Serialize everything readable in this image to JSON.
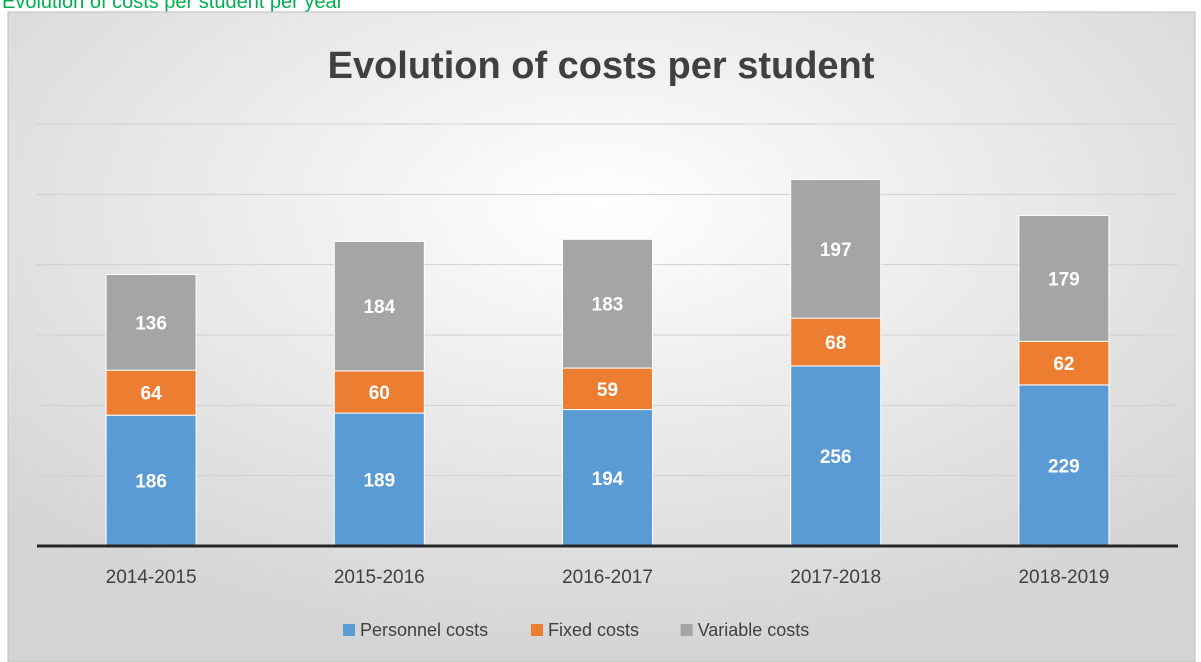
{
  "header": {
    "title": "Evolution of costs per student per year"
  },
  "chart_data": {
    "type": "stacked_bar",
    "title": "Evolution of costs per student",
    "categories": [
      "2014-2015",
      "2015-2016",
      "2016-2017",
      "2017-2018",
      "2018-2019"
    ],
    "series": [
      {
        "name": "Personnel costs",
        "color": "#5b9bd5",
        "values": [
          186,
          189,
          194,
          256,
          229
        ]
      },
      {
        "name": "Fixed costs",
        "color": "#ed7d31",
        "values": [
          64,
          60,
          59,
          68,
          62
        ]
      },
      {
        "name": "Variable costs",
        "color": "#a5a5a5",
        "values": [
          136,
          184,
          183,
          197,
          179
        ]
      }
    ],
    "ylim": [
      0,
      600
    ],
    "yticks": [
      0,
      100,
      200,
      300,
      400,
      500,
      600
    ],
    "grid": true,
    "legend": "bottom"
  }
}
